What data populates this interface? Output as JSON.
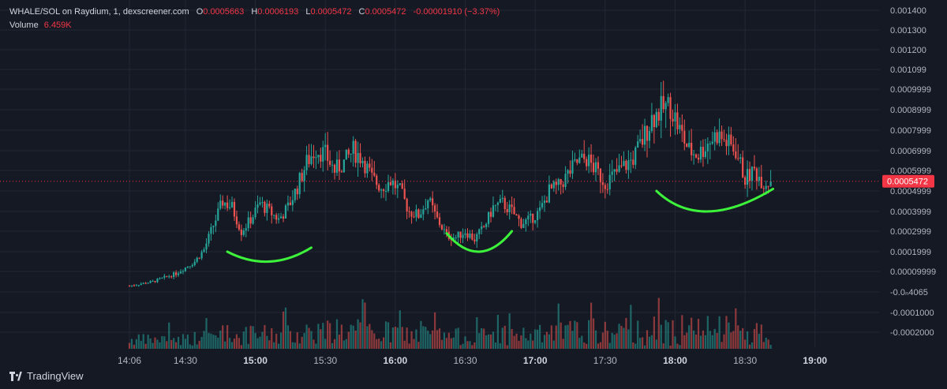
{
  "legend": {
    "symbol": "WHALE/SOL on Raydium, 1, dexscreener.com",
    "open_label": "O",
    "open": "0.0005663",
    "high_label": "H",
    "high": "0.0006193",
    "low_label": "L",
    "low": "0.0005472",
    "close_label": "C",
    "close": "0.0005472",
    "change": "-0.00001910 (−3.37%)",
    "volume_label": "Volume",
    "volume": "6.459K"
  },
  "branding": {
    "name": "TradingView"
  },
  "colors": {
    "background": "#151924",
    "grid": "#232734",
    "up": "#26a69a",
    "down": "#ef5350",
    "text": "#b2b5be",
    "price_tag": "#f23645",
    "annotation": "#3cf23a"
  },
  "chart_data": {
    "type": "candlestick",
    "symbol": "WHALE/SOL",
    "interval": "1",
    "last_price_label": "0.0005472",
    "y_ticks": [
      "0.001400",
      "0.001300",
      "0.001200",
      "0.001099",
      "0.0009999",
      "0.0008999",
      "0.0007999",
      "0.0006999",
      "0.0005999",
      "0.0004999",
      "0.0003999",
      "0.0002999",
      "0.0001999",
      "0.00009999",
      "-0.0ₙ4065",
      "-0.0001000",
      "-0.0002000"
    ],
    "y_tick_values": [
      0.0014,
      0.0013,
      0.0012,
      0.0011,
      0.001,
      0.0009,
      0.0008,
      0.0007,
      0.0006,
      0.0005,
      0.0004,
      0.0003,
      0.0002,
      0.0001,
      0.0,
      -0.0001,
      -0.0002
    ],
    "x_ticks": [
      "14:06",
      "14:30",
      "15:00",
      "15:30",
      "16:00",
      "16:30",
      "17:00",
      "17:30",
      "18:00",
      "18:30",
      "19:00"
    ],
    "x_tick_minutes": [
      0,
      24,
      54,
      84,
      114,
      144,
      174,
      204,
      234,
      264,
      294
    ],
    "x_major_ticks": [
      "15:00",
      "16:00",
      "17:00",
      "18:00",
      "19:00"
    ],
    "price_keypoints": [
      [
        0,
        3e-05
      ],
      [
        10,
        5e-05
      ],
      [
        20,
        9e-05
      ],
      [
        28,
        0.00015
      ],
      [
        32,
        0.00021
      ],
      [
        36,
        0.00033
      ],
      [
        40,
        0.00045
      ],
      [
        44,
        0.00042
      ],
      [
        48,
        0.0003
      ],
      [
        52,
        0.00036
      ],
      [
        56,
        0.00044
      ],
      [
        60,
        0.0004
      ],
      [
        64,
        0.00036
      ],
      [
        68,
        0.00042
      ],
      [
        72,
        0.00052
      ],
      [
        76,
        0.00064
      ],
      [
        80,
        0.00071
      ],
      [
        84,
        0.00068
      ],
      [
        88,
        0.0006
      ],
      [
        92,
        0.00064
      ],
      [
        96,
        0.0007
      ],
      [
        100,
        0.00066
      ],
      [
        104,
        0.00056
      ],
      [
        108,
        0.00052
      ],
      [
        112,
        0.00055
      ],
      [
        116,
        0.0005
      ],
      [
        120,
        0.0004
      ],
      [
        124,
        0.00038
      ],
      [
        128,
        0.00046
      ],
      [
        132,
        0.00036
      ],
      [
        136,
        0.00028
      ],
      [
        140,
        0.00027
      ],
      [
        144,
        0.0003
      ],
      [
        148,
        0.00026
      ],
      [
        152,
        0.00032
      ],
      [
        156,
        0.00042
      ],
      [
        160,
        0.00044
      ],
      [
        164,
        0.0004
      ],
      [
        168,
        0.00034
      ],
      [
        172,
        0.00036
      ],
      [
        176,
        0.0004
      ],
      [
        180,
        0.0005
      ],
      [
        184,
        0.00052
      ],
      [
        188,
        0.00058
      ],
      [
        192,
        0.00064
      ],
      [
        196,
        0.00066
      ],
      [
        200,
        0.0006
      ],
      [
        204,
        0.00054
      ],
      [
        208,
        0.00058
      ],
      [
        212,
        0.00062
      ],
      [
        216,
        0.00066
      ],
      [
        220,
        0.00075
      ],
      [
        224,
        0.00086
      ],
      [
        228,
        0.0009
      ],
      [
        232,
        0.00092
      ],
      [
        236,
        0.0008
      ],
      [
        240,
        0.0007
      ],
      [
        244,
        0.00068
      ],
      [
        248,
        0.00074
      ],
      [
        252,
        0.00078
      ],
      [
        256,
        0.00074
      ],
      [
        260,
        0.0007
      ],
      [
        264,
        0.00056
      ],
      [
        268,
        0.0006
      ],
      [
        272,
        0.00054
      ],
      [
        275,
        0.00055
      ]
    ],
    "annotations": [
      {
        "type": "curve",
        "from": [
          42,
          0.0002
        ],
        "mid": [
          60,
          0.00015
        ],
        "to": [
          78,
          0.00022
        ]
      },
      {
        "type": "curve",
        "from": [
          136,
          0.00029
        ],
        "mid": [
          150,
          0.0002
        ],
        "to": [
          164,
          0.0003
        ]
      },
      {
        "type": "curve",
        "from": [
          226,
          0.0005
        ],
        "mid": [
          248,
          0.0004
        ],
        "to": [
          276,
          0.00051
        ]
      }
    ]
  }
}
